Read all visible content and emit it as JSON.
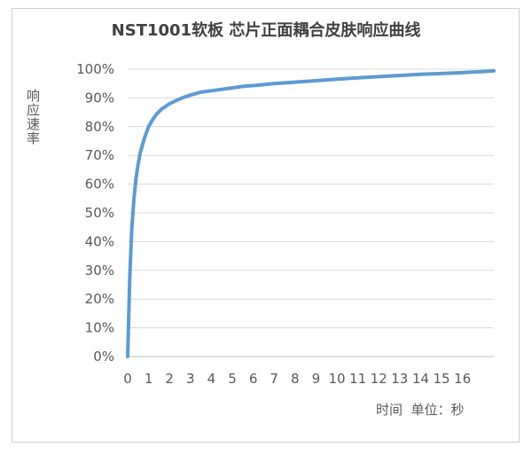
{
  "chart_data": {
    "type": "line",
    "title": "NST1001软板 芯片正面耦合皮肤响应曲线",
    "ylabel": "响应速率",
    "xlabel": "时间  单位：秒",
    "x_ticks": [
      "0",
      "1",
      "2",
      "3",
      "4",
      "5",
      "6",
      "7",
      "8",
      "9",
      "10",
      "11",
      "12",
      "13",
      "14",
      "15",
      "16"
    ],
    "y_ticks": [
      "0%",
      "10%",
      "20%",
      "30%",
      "40%",
      "50%",
      "60%",
      "70%",
      "80%",
      "90%",
      "100%"
    ],
    "xlim": [
      0,
      17.5
    ],
    "ylim": [
      0,
      100
    ],
    "grid": true,
    "line_color": "#5b9bd5",
    "series": [
      {
        "x": [
          0,
          0.1,
          0.2,
          0.3,
          0.4,
          0.5,
          0.6,
          0.7,
          0.8,
          0.9,
          1.0,
          1.2,
          1.4,
          1.6,
          1.8,
          2.0,
          2.3,
          2.6,
          3.0,
          3.5,
          4.0,
          4.5,
          5.0,
          5.5,
          6.0,
          7.0,
          8.0,
          9.0,
          10.0,
          11.0,
          12.0,
          13.0,
          14.0,
          15.0,
          16.0,
          17.0,
          17.5
        ],
        "y": [
          0,
          28,
          45,
          55,
          62,
          67,
          71,
          73.5,
          76,
          78,
          80,
          82.5,
          84.5,
          86,
          87,
          88,
          89,
          90,
          91,
          92,
          92.5,
          93,
          93.5,
          94,
          94.3,
          95,
          95.5,
          96,
          96.5,
          97,
          97.4,
          97.8,
          98.2,
          98.5,
          98.8,
          99.2,
          99.4
        ]
      }
    ]
  }
}
